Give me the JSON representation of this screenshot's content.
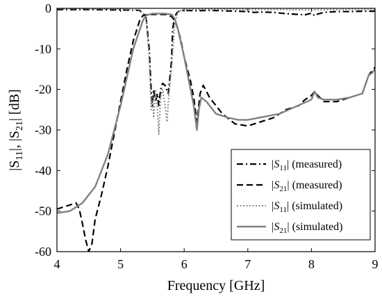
{
  "chart_data": {
    "type": "line",
    "xlabel": "Frequency [GHz]",
    "ylabel": "|S11|, |S21| [dB]",
    "xlim": [
      4,
      9
    ],
    "ylim": [
      -60,
      0
    ],
    "xticks": [
      "4",
      "5",
      "6",
      "7",
      "8",
      "9"
    ],
    "yticks": [
      "0",
      "-10",
      "-20",
      "-30",
      "-40",
      "-50",
      "-60"
    ],
    "grid": false,
    "legend_position": "bottom-right",
    "series": [
      {
        "name": "|S11| (measured)",
        "color": "#000000",
        "style": "dashdot",
        "x": [
          4.0,
          4.5,
          5.0,
          5.3,
          5.4,
          5.45,
          5.48,
          5.5,
          5.52,
          5.55,
          5.58,
          5.6,
          5.63,
          5.66,
          5.7,
          5.75,
          5.8,
          5.82,
          5.85,
          5.9,
          6.0,
          6.2,
          6.4,
          6.6,
          6.8,
          7.0,
          7.1,
          7.2,
          7.4,
          7.6,
          7.8,
          7.9,
          8.0,
          8.05,
          8.1,
          8.2,
          8.4,
          8.6,
          8.8,
          9.0
        ],
        "y": [
          -0.3,
          -0.3,
          -0.4,
          -0.5,
          -2.0,
          -10.0,
          -20.0,
          -24.0,
          -20.0,
          -23.0,
          -21.0,
          -24.0,
          -20.0,
          -18.5,
          -19.0,
          -21.0,
          -13.0,
          -5.0,
          -2.0,
          -0.8,
          -0.5,
          -0.6,
          -0.5,
          -0.6,
          -0.7,
          -0.8,
          -1.0,
          -0.9,
          -1.0,
          -1.3,
          -1.5,
          -1.6,
          -1.2,
          -1.8,
          -1.4,
          -1.0,
          -0.8,
          -0.8,
          -0.7,
          -0.7
        ]
      },
      {
        "name": "|S21| (measured)",
        "color": "#000000",
        "style": "dashed",
        "x": [
          4.0,
          4.1,
          4.2,
          4.3,
          4.35,
          4.4,
          4.45,
          4.5,
          4.55,
          4.6,
          4.7,
          4.8,
          4.9,
          5.0,
          5.1,
          5.2,
          5.3,
          5.35,
          5.4,
          5.45,
          5.5,
          5.6,
          5.7,
          5.8,
          5.85,
          5.9,
          5.95,
          6.0,
          6.1,
          6.15,
          6.2,
          6.25,
          6.3,
          6.4,
          6.6,
          6.8,
          7.0,
          7.2,
          7.4,
          7.6,
          7.8,
          7.9,
          8.0,
          8.05,
          8.1,
          8.2,
          8.4,
          8.6,
          8.8,
          8.9,
          8.95,
          9.0
        ],
        "y": [
          -49.5,
          -49.0,
          -48.5,
          -48.0,
          -49.5,
          -53.0,
          -57.0,
          -60.0,
          -58.0,
          -52.0,
          -46.0,
          -39.0,
          -31.0,
          -23.0,
          -15.0,
          -8.0,
          -3.0,
          -1.8,
          -1.6,
          -1.5,
          -1.5,
          -1.5,
          -1.5,
          -2.0,
          -3.0,
          -5.0,
          -8.0,
          -12.0,
          -18.0,
          -22.0,
          -28.0,
          -21.0,
          -19.0,
          -22.0,
          -26.0,
          -28.5,
          -29.0,
          -28.0,
          -27.0,
          -25.0,
          -24.0,
          -22.5,
          -21.5,
          -20.5,
          -21.5,
          -23.0,
          -23.0,
          -22.0,
          -21.0,
          -16.5,
          -15.5,
          -14.5
        ]
      },
      {
        "name": "|S11| (simulated)",
        "color": "#888888",
        "style": "dotted",
        "x": [
          4.0,
          4.5,
          5.0,
          5.3,
          5.4,
          5.45,
          5.48,
          5.5,
          5.52,
          5.55,
          5.58,
          5.6,
          5.63,
          5.66,
          5.7,
          5.73,
          5.76,
          5.8,
          5.85,
          5.9,
          6.0,
          6.5,
          7.0,
          7.5,
          8.0,
          8.5,
          9.0
        ],
        "y": [
          -0.1,
          -0.1,
          -0.2,
          -0.4,
          -2.0,
          -12.0,
          -25.0,
          -22.0,
          -27.0,
          -20.0,
          -25.0,
          -31.0,
          -22.0,
          -20.0,
          -24.0,
          -28.0,
          -21.0,
          -15.0,
          -4.0,
          -0.8,
          -0.3,
          -0.2,
          -0.3,
          -0.3,
          -0.4,
          -0.3,
          -0.3
        ]
      },
      {
        "name": "|S21| (simulated)",
        "color": "#808080",
        "style": "solid",
        "x": [
          4.0,
          4.2,
          4.4,
          4.6,
          4.8,
          5.0,
          5.2,
          5.35,
          5.4,
          5.45,
          5.5,
          5.6,
          5.7,
          5.8,
          5.85,
          5.9,
          6.0,
          6.1,
          6.15,
          6.2,
          6.23,
          6.27,
          6.35,
          6.5,
          6.7,
          6.85,
          7.0,
          7.5,
          8.0,
          8.05,
          8.1,
          8.2,
          8.4,
          8.6,
          8.8,
          8.9,
          8.95,
          9.0
        ],
        "y": [
          -50.5,
          -50.0,
          -48.0,
          -44.0,
          -36.0,
          -24.0,
          -10.0,
          -3.0,
          -1.8,
          -1.5,
          -1.3,
          -1.3,
          -1.3,
          -1.5,
          -2.5,
          -5.0,
          -12.0,
          -20.0,
          -24.0,
          -30.0,
          -25.0,
          -22.0,
          -23.0,
          -26.0,
          -27.0,
          -27.5,
          -27.5,
          -26.0,
          -22.5,
          -20.5,
          -22.0,
          -22.5,
          -22.5,
          -22.0,
          -21.0,
          -16.5,
          -16.0,
          -15.0
        ]
      }
    ],
    "legend": [
      {
        "main": "|S",
        "sub": "11",
        "tail": "| (measured)"
      },
      {
        "main": "|S",
        "sub": "21",
        "tail": "| (measured)"
      },
      {
        "main": "|S",
        "sub": "11",
        "tail": "| (simulated)"
      },
      {
        "main": "|S",
        "sub": "21",
        "tail": "| (simulated)"
      }
    ]
  }
}
